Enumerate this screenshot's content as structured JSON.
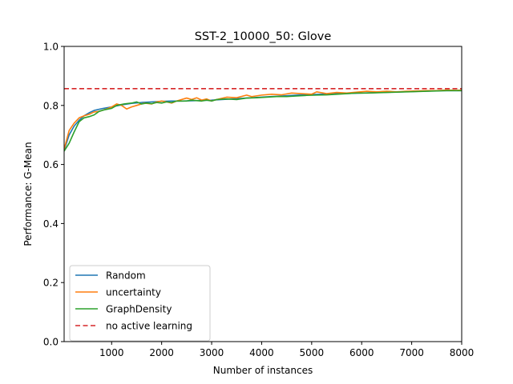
{
  "chart_data": {
    "type": "line",
    "title": "SST-2_10000_50: Glove",
    "xlabel": "Number of instances",
    "ylabel": "Performance: G-Mean",
    "xlim": [
      50,
      8000
    ],
    "ylim": [
      0.0,
      1.0
    ],
    "xticks": [
      1000,
      2000,
      3000,
      4000,
      5000,
      6000,
      7000,
      8000
    ],
    "yticks": [
      0.0,
      0.2,
      0.4,
      0.6,
      0.8,
      1.0
    ],
    "xtick_labels": [
      "1000",
      "2000",
      "3000",
      "4000",
      "5000",
      "6000",
      "7000",
      "8000"
    ],
    "ytick_labels": [
      "0.0",
      "0.2",
      "0.4",
      "0.6",
      "0.8",
      "1.0"
    ],
    "grid": false,
    "legend_position": "lower-left",
    "series": [
      {
        "name": "Random",
        "color": "#1f77b4",
        "style": "solid",
        "points": [
          [
            50,
            0.648
          ],
          [
            150,
            0.7
          ],
          [
            250,
            0.73
          ],
          [
            350,
            0.75
          ],
          [
            450,
            0.765
          ],
          [
            550,
            0.775
          ],
          [
            650,
            0.783
          ],
          [
            800,
            0.789
          ],
          [
            1000,
            0.795
          ],
          [
            1200,
            0.802
          ],
          [
            1400,
            0.807
          ],
          [
            1600,
            0.81
          ],
          [
            1800,
            0.812
          ],
          [
            2000,
            0.814
          ],
          [
            2200,
            0.815
          ],
          [
            2400,
            0.815
          ],
          [
            2600,
            0.816
          ],
          [
            2800,
            0.817
          ],
          [
            3000,
            0.818
          ],
          [
            3200,
            0.82
          ],
          [
            3400,
            0.822
          ],
          [
            3600,
            0.824
          ],
          [
            3800,
            0.826
          ],
          [
            4000,
            0.828
          ],
          [
            4200,
            0.83
          ],
          [
            4400,
            0.832
          ],
          [
            4600,
            0.834
          ],
          [
            4800,
            0.836
          ],
          [
            5000,
            0.837
          ],
          [
            5200,
            0.838
          ],
          [
            5400,
            0.839
          ],
          [
            5600,
            0.84
          ],
          [
            5800,
            0.841
          ],
          [
            6000,
            0.842
          ],
          [
            6200,
            0.843
          ],
          [
            6400,
            0.844
          ],
          [
            6600,
            0.845
          ],
          [
            6800,
            0.846
          ],
          [
            7000,
            0.847
          ],
          [
            7200,
            0.848
          ],
          [
            7400,
            0.849
          ],
          [
            7600,
            0.85
          ],
          [
            7800,
            0.85
          ],
          [
            8000,
            0.85
          ]
        ]
      },
      {
        "name": "uncertainty",
        "color": "#ff7f0e",
        "style": "solid",
        "points": [
          [
            50,
            0.652
          ],
          [
            150,
            0.715
          ],
          [
            250,
            0.74
          ],
          [
            350,
            0.758
          ],
          [
            450,
            0.765
          ],
          [
            550,
            0.77
          ],
          [
            650,
            0.778
          ],
          [
            750,
            0.78
          ],
          [
            900,
            0.788
          ],
          [
            1000,
            0.795
          ],
          [
            1100,
            0.805
          ],
          [
            1200,
            0.8
          ],
          [
            1300,
            0.788
          ],
          [
            1400,
            0.795
          ],
          [
            1500,
            0.8
          ],
          [
            1650,
            0.808
          ],
          [
            1800,
            0.805
          ],
          [
            1900,
            0.812
          ],
          [
            2000,
            0.815
          ],
          [
            2100,
            0.812
          ],
          [
            2200,
            0.808
          ],
          [
            2300,
            0.815
          ],
          [
            2500,
            0.825
          ],
          [
            2600,
            0.82
          ],
          [
            2700,
            0.826
          ],
          [
            2800,
            0.818
          ],
          [
            2900,
            0.822
          ],
          [
            3000,
            0.815
          ],
          [
            3100,
            0.82
          ],
          [
            3300,
            0.828
          ],
          [
            3500,
            0.826
          ],
          [
            3700,
            0.835
          ],
          [
            3800,
            0.83
          ],
          [
            4000,
            0.835
          ],
          [
            4200,
            0.838
          ],
          [
            4400,
            0.836
          ],
          [
            4600,
            0.842
          ],
          [
            4800,
            0.84
          ],
          [
            5000,
            0.838
          ],
          [
            5100,
            0.846
          ],
          [
            5300,
            0.84
          ],
          [
            5500,
            0.844
          ],
          [
            5700,
            0.842
          ],
          [
            5900,
            0.845
          ],
          [
            6100,
            0.848
          ],
          [
            6300,
            0.846
          ],
          [
            6500,
            0.848
          ],
          [
            6700,
            0.846
          ],
          [
            6900,
            0.848
          ],
          [
            7100,
            0.849
          ],
          [
            7300,
            0.85
          ],
          [
            7500,
            0.85
          ],
          [
            7700,
            0.852
          ],
          [
            7900,
            0.851
          ],
          [
            8000,
            0.852
          ]
        ]
      },
      {
        "name": "GraphDensity",
        "color": "#2ca02c",
        "style": "solid",
        "points": [
          [
            50,
            0.645
          ],
          [
            150,
            0.672
          ],
          [
            250,
            0.71
          ],
          [
            350,
            0.745
          ],
          [
            450,
            0.758
          ],
          [
            550,
            0.762
          ],
          [
            650,
            0.768
          ],
          [
            750,
            0.78
          ],
          [
            850,
            0.785
          ],
          [
            1000,
            0.79
          ],
          [
            1100,
            0.8
          ],
          [
            1250,
            0.805
          ],
          [
            1400,
            0.808
          ],
          [
            1500,
            0.812
          ],
          [
            1600,
            0.805
          ],
          [
            1700,
            0.808
          ],
          [
            1800,
            0.806
          ],
          [
            1900,
            0.81
          ],
          [
            2000,
            0.808
          ],
          [
            2100,
            0.812
          ],
          [
            2200,
            0.81
          ],
          [
            2300,
            0.815
          ],
          [
            2500,
            0.815
          ],
          [
            2600,
            0.818
          ],
          [
            2800,
            0.815
          ],
          [
            2900,
            0.818
          ],
          [
            3000,
            0.815
          ],
          [
            3100,
            0.82
          ],
          [
            3300,
            0.822
          ],
          [
            3500,
            0.82
          ],
          [
            3700,
            0.825
          ],
          [
            3900,
            0.826
          ],
          [
            4100,
            0.828
          ],
          [
            4300,
            0.83
          ],
          [
            4500,
            0.83
          ],
          [
            4700,
            0.832
          ],
          [
            4900,
            0.834
          ],
          [
            5100,
            0.835
          ],
          [
            5300,
            0.836
          ],
          [
            5500,
            0.838
          ],
          [
            5700,
            0.84
          ],
          [
            5900,
            0.842
          ],
          [
            6100,
            0.842
          ],
          [
            6300,
            0.843
          ],
          [
            6500,
            0.844
          ],
          [
            6700,
            0.845
          ],
          [
            6900,
            0.846
          ],
          [
            7100,
            0.847
          ],
          [
            7300,
            0.848
          ],
          [
            7500,
            0.849
          ],
          [
            7700,
            0.85
          ],
          [
            7900,
            0.85
          ],
          [
            8000,
            0.85
          ]
        ]
      },
      {
        "name": "no active learning",
        "color": "#d62728",
        "style": "dashed",
        "points": [
          [
            50,
            0.857
          ],
          [
            8000,
            0.857
          ]
        ]
      }
    ]
  }
}
